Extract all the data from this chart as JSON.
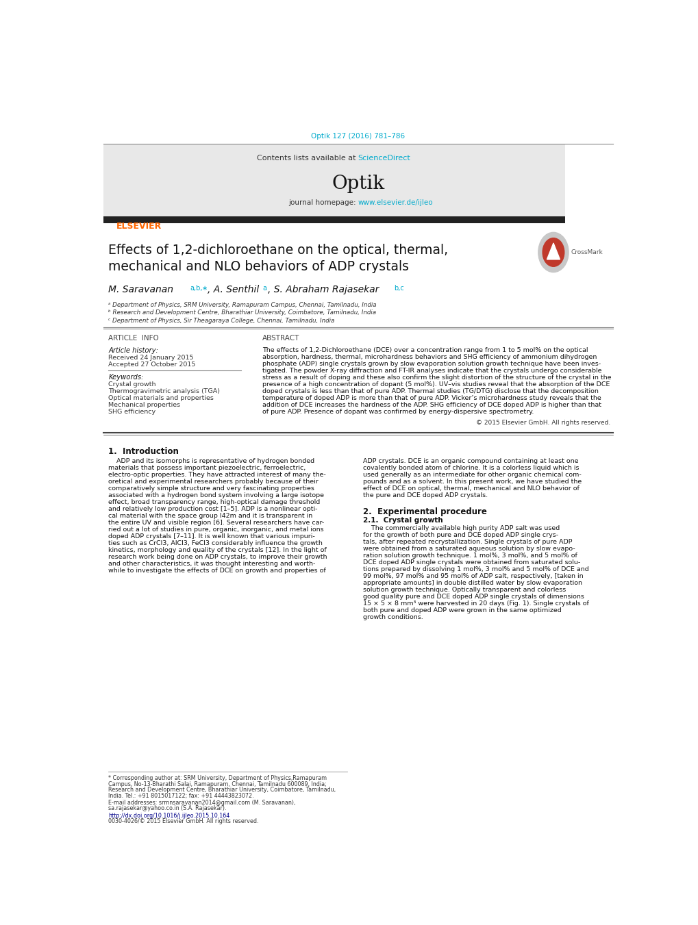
{
  "page_width": 10.2,
  "page_height": 13.51,
  "bg_color": "#ffffff",
  "top_citation": "Optik 127 (2016) 781–786",
  "top_citation_color": "#00aacc",
  "journal_name": "Optik",
  "contents_text": "Contents lists available at ",
  "sciencedirect_text": "ScienceDirect",
  "sciencedirect_color": "#00aacc",
  "homepage_text": "journal homepage: ",
  "homepage_url": "www.elsevier.de/ijleo",
  "homepage_url_color": "#00aacc",
  "elsevier_color": "#ff6600",
  "header_bg": "#e8e8e8",
  "article_title_line1": "Effects of 1,2-dichloroethane on the optical, thermal,",
  "article_title_line2": "mechanical and NLO behaviors of ADP crystals",
  "affil_a": "ᵃ Department of Physics, SRM University, Ramapuram Campus, Chennai, Tamilnadu, India",
  "affil_b": "ᵇ Research and Development Centre, Bharathiar University, Coimbatore, Tamilnadu, India",
  "affil_c": "ᶜ Department of Physics, Sir Theagaraya College, Chennai, Tamilnadu, India",
  "article_info_header": "ARTICLE  INFO",
  "abstract_header": "ABSTRACT",
  "article_history_label": "Article history:",
  "received": "Received 24 January 2015",
  "accepted": "Accepted 27 October 2015",
  "keywords_label": "Keywords:",
  "keyword1": "Crystal growth",
  "keyword2": "Thermogravimetric analysis (TGA)",
  "keyword3": "Optical materials and properties",
  "keyword4": "Mechanical properties",
  "keyword5": "SHG efficiency",
  "copyright": "© 2015 Elsevier GmbH. All rights reserved.",
  "intro_header": "1.  Introduction",
  "exp_header": "2.  Experimental procedure",
  "exp_sub_header": "2.1.  Crystal growth",
  "footer_doi": "http://dx.doi.org/10.1016/j.ijleo.2015.10.164",
  "footer_issn": "0030-4026/© 2015 Elsevier GmbH. All rights reserved.",
  "dark_bar_color": "#222222",
  "text_color": "#000000",
  "link_color": "#0000cc"
}
